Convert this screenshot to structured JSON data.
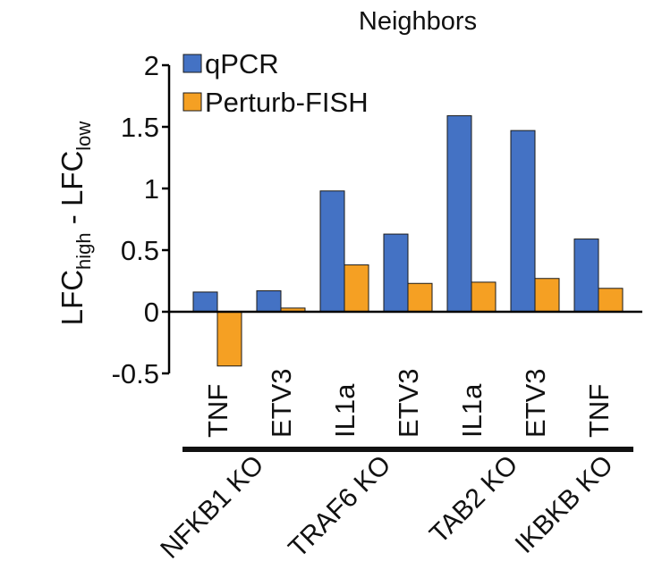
{
  "chart_data": {
    "type": "bar",
    "title": "Neighbors",
    "ylabel": {
      "main": "LFC",
      "sub1": "high",
      "sep": " - ",
      "main2": "LFC",
      "sub2": "low"
    },
    "ylim": [
      -0.5,
      2
    ],
    "yticks": [
      "-0.5",
      "0",
      "0.5",
      "1",
      "1.5",
      "2"
    ],
    "ytick_values": [
      -0.5,
      0,
      0.5,
      1,
      1.5,
      2
    ],
    "categories": [
      "TNF",
      "ETV3",
      "IL1a",
      "ETV3",
      "IL1a",
      "ETV3",
      "TNF"
    ],
    "groups": [
      {
        "label": "NFKB1 KO",
        "categories": [
          0,
          1
        ]
      },
      {
        "label": "TRAF6 KO",
        "categories": [
          2,
          3
        ]
      },
      {
        "label": "TAB2 KO",
        "categories": [
          4,
          5
        ]
      },
      {
        "label": "IKBKB KO",
        "categories": [
          6
        ]
      }
    ],
    "series": [
      {
        "name": "qPCR",
        "color": "#4472c4",
        "values": [
          0.16,
          0.17,
          0.98,
          0.63,
          1.59,
          1.47,
          0.59
        ]
      },
      {
        "name": "Perturb-FISH",
        "color": "#f5a023",
        "values": [
          -0.44,
          0.03,
          0.38,
          0.23,
          0.24,
          0.27,
          0.19
        ]
      }
    ],
    "legend_position": "top-left",
    "grid": false
  }
}
